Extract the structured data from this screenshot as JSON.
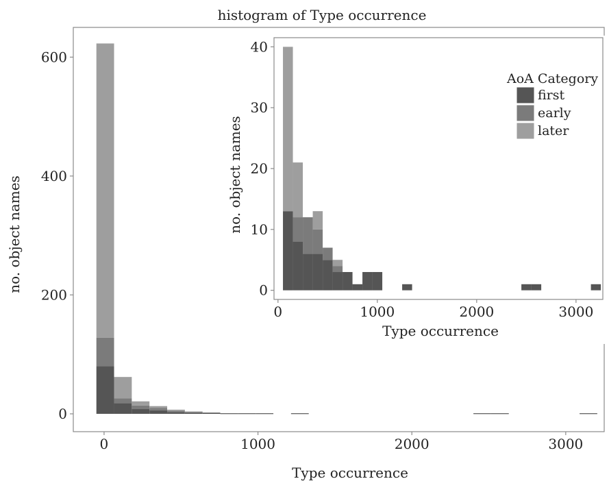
{
  "chart_data": [
    {
      "id": "main",
      "type": "bar",
      "title": "histogram of Type occurrence",
      "xlabel": "Type occurrence",
      "ylabel": "no. object names",
      "xlim": [
        -200,
        3250
      ],
      "ylim": [
        -30,
        650
      ],
      "x_ticks": [
        0,
        1000,
        2000,
        3000
      ],
      "y_ticks": [
        0,
        200,
        400,
        600
      ],
      "grid": false,
      "bin_width": 115,
      "stacked": true,
      "series": [
        {
          "name": "first",
          "color": "#555555",
          "bins": [
            [
              -50,
              80
            ],
            [
              65,
              18
            ],
            [
              180,
              8
            ],
            [
              295,
              6
            ],
            [
              410,
              3
            ],
            [
              525,
              2
            ],
            [
              640,
              2
            ],
            [
              755,
              1
            ],
            [
              870,
              1
            ],
            [
              985,
              1
            ],
            [
              1215,
              1
            ],
            [
              2400,
              1
            ],
            [
              2515,
              1
            ],
            [
              3090,
              1
            ]
          ]
        },
        {
          "name": "early",
          "color": "#7b7b7b",
          "bins": [
            [
              -50,
              48
            ],
            [
              65,
              8
            ],
            [
              180,
              6
            ],
            [
              295,
              4
            ],
            [
              410,
              2
            ],
            [
              525,
              1
            ]
          ]
        },
        {
          "name": "later",
          "color": "#9e9e9e",
          "bins": [
            [
              -50,
              495
            ],
            [
              65,
              36
            ],
            [
              180,
              7
            ],
            [
              295,
              3
            ],
            [
              410,
              2
            ],
            [
              525,
              1
            ],
            [
              640,
              0
            ]
          ]
        }
      ]
    },
    {
      "id": "inset",
      "type": "bar",
      "title": "",
      "xlabel": "Type occurrence",
      "ylabel": "no. object names",
      "xlim": [
        -40,
        3270
      ],
      "ylim": [
        -1.5,
        41.5
      ],
      "x_ticks": [
        0,
        1000,
        2000,
        3000
      ],
      "y_ticks": [
        0,
        10,
        20,
        30,
        40
      ],
      "grid": false,
      "bin_width": 100,
      "stacked": true,
      "legend": {
        "title": "AoA Category",
        "position": "top-right",
        "entries": [
          "first",
          "early",
          "later"
        ]
      },
      "series": [
        {
          "name": "first",
          "color": "#555555",
          "bins": [
            [
              50,
              13
            ],
            [
              150,
              8
            ],
            [
              250,
              6
            ],
            [
              350,
              6
            ],
            [
              450,
              5
            ],
            [
              550,
              3
            ],
            [
              650,
              3
            ],
            [
              750,
              1
            ],
            [
              850,
              3
            ],
            [
              950,
              3
            ],
            [
              1250,
              1
            ],
            [
              2450,
              1
            ],
            [
              2550,
              1
            ],
            [
              3150,
              1
            ]
          ]
        },
        {
          "name": "early",
          "color": "#7b7b7b",
          "bins": [
            [
              150,
              4
            ],
            [
              250,
              6
            ],
            [
              350,
              4
            ],
            [
              450,
              2
            ],
            [
              550,
              1
            ]
          ]
        },
        {
          "name": "later",
          "color": "#9e9e9e",
          "bins": [
            [
              50,
              27
            ],
            [
              150,
              9
            ],
            [
              250,
              0
            ],
            [
              350,
              3
            ],
            [
              450,
              0
            ],
            [
              550,
              1
            ]
          ]
        }
      ]
    }
  ]
}
